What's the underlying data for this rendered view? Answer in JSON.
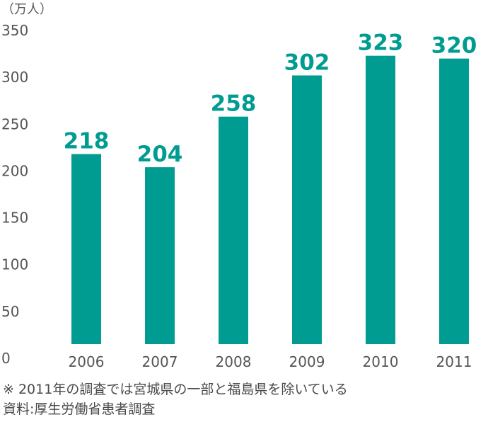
{
  "chart_data": {
    "type": "bar",
    "unit_label": "（万人）",
    "categories": [
      "2006",
      "2007",
      "2008",
      "2009",
      "2010",
      "2011"
    ],
    "values": [
      218,
      204,
      258,
      302,
      323,
      320
    ],
    "data_labels": [
      "218",
      "204",
      "258",
      "302",
      "323",
      "320"
    ],
    "yticks": [
      "0",
      "50",
      "100",
      "150",
      "200",
      "250",
      "300",
      "350"
    ],
    "ylim": [
      0,
      350
    ],
    "grid": false,
    "bar_color": "#009c91",
    "label_color": "#009c91"
  },
  "notes": {
    "footnote": "※ 2011年の調査では宮城県の一部と福島県を除いている",
    "source": "資料:厚生労働省患者調査"
  }
}
